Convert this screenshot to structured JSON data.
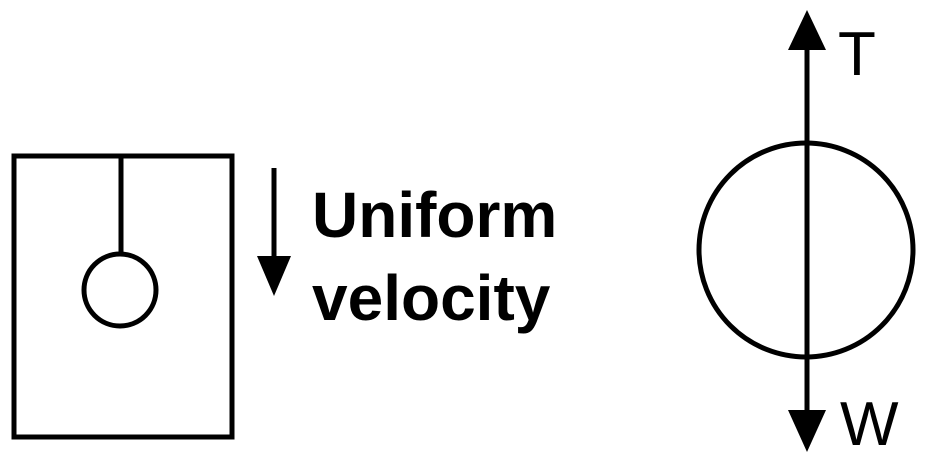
{
  "motion_label": {
    "line1": "Uniform",
    "line2": "velocity"
  },
  "forces": {
    "tension": "T",
    "weight": "W"
  },
  "colors": {
    "stroke": "#000000",
    "background": "#ffffff"
  }
}
